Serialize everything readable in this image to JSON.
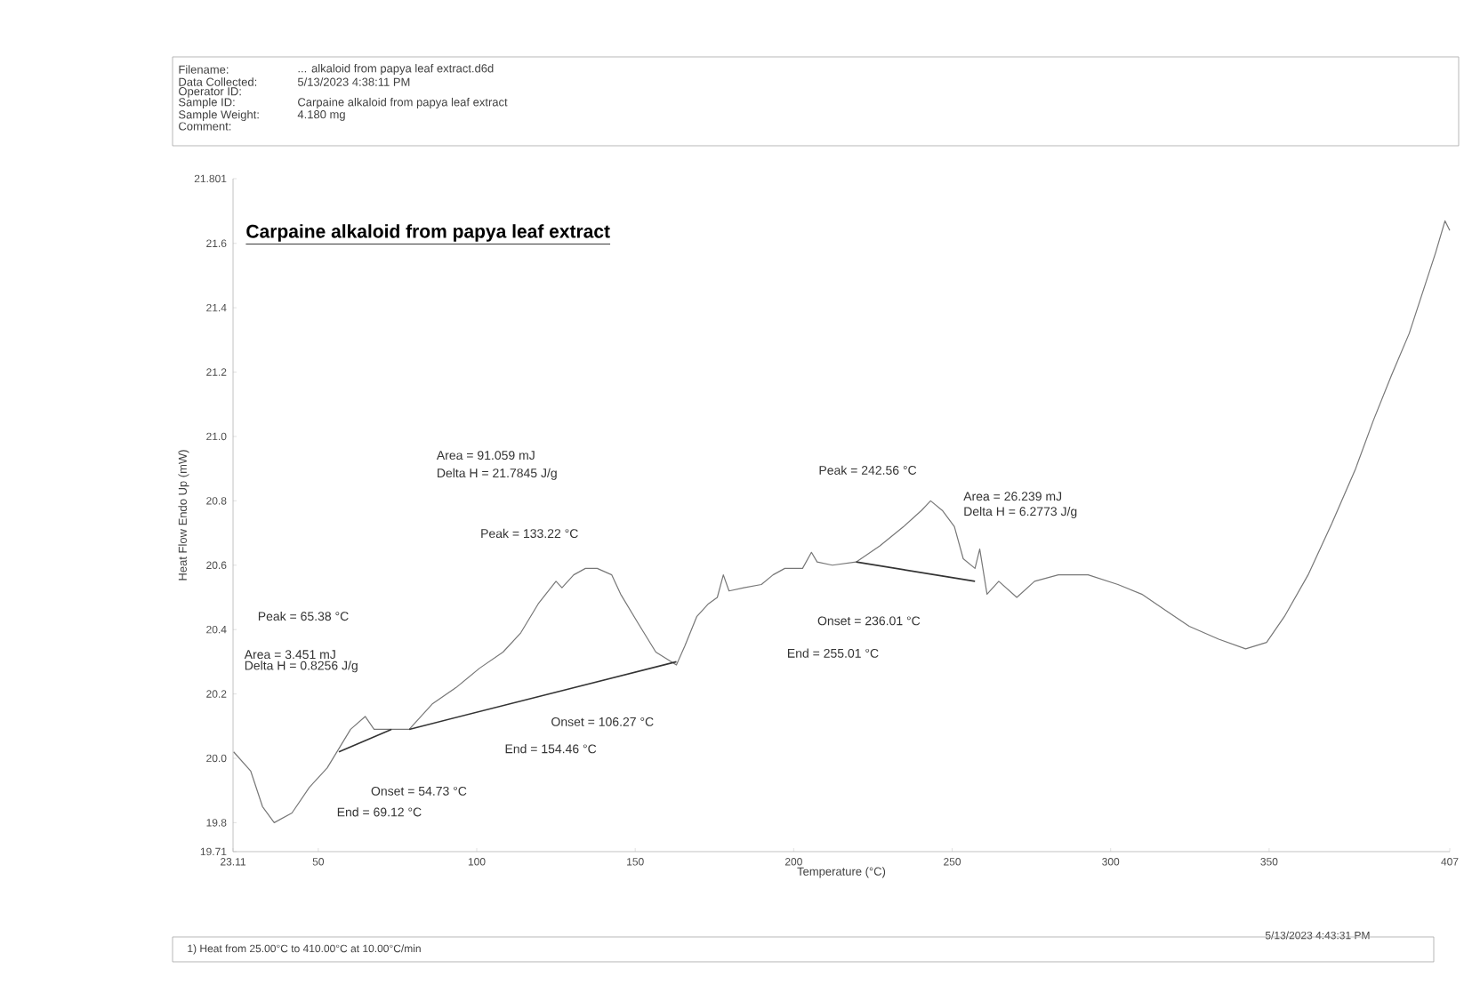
{
  "chart_data": {
    "type": "line",
    "title": "Carpaine alkaloid from papya leaf extract",
    "xlabel": "Temperature (°C)",
    "ylabel": "Heat Flow Endo Up (mW)",
    "xlim": [
      23.11,
      407
    ],
    "ylim": [
      19.71,
      21.801
    ],
    "xticks": [
      23.11,
      50,
      100,
      150,
      200,
      250,
      300,
      350,
      407
    ],
    "yticks": [
      19.71,
      19.8,
      {
        "value": 20,
        "label": "20.0"
      },
      20.2,
      20.4,
      20.6,
      20.8,
      {
        "value": 21,
        "label": "21.0"
      },
      21.2,
      21.4,
      21.6,
      21.801
    ],
    "series": [
      {
        "color": "#777777",
        "x": [
          23.3,
          28.7,
          32.4,
          36.1,
          41.7,
          47.2,
          52.8,
          56.5,
          60.2,
          64.8,
          67.6,
          71.3,
          78.7,
          86.1,
          93.5,
          100.9,
          108.3,
          113.9,
          119.4,
          125.0,
          126.9,
          130.6,
          134.3,
          138.0,
          142.6,
          145.4,
          150.9,
          156.5,
          163.0,
          165.7,
          169.4,
          173.1,
          175.9,
          177.8,
          179.6,
          184.3,
          189.8,
          193.5,
          197.2,
          202.8,
          205.6,
          207.4,
          212.2,
          219.7,
          227.2,
          234.7,
          240.3,
          243.2,
          246.9,
          250.7,
          253.5,
          257.2,
          258.7,
          261.0,
          264.7,
          270.4,
          276.0,
          283.5,
          292.9,
          302.3,
          309.8,
          317.3,
          324.8,
          334.1,
          342.6,
          349.2,
          354.8,
          362.3,
          369.8,
          377.3,
          382.9,
          388.6,
          394.2,
          402.5,
          405.5,
          407
        ],
        "values": [
          20.02,
          19.96,
          19.85,
          19.8,
          19.83,
          19.91,
          19.97,
          20.03,
          20.09,
          20.13,
          20.09,
          20.09,
          20.09,
          20.17,
          20.22,
          20.28,
          20.33,
          20.39,
          20.48,
          20.55,
          20.53,
          20.57,
          20.59,
          20.59,
          20.57,
          20.51,
          20.42,
          20.33,
          20.29,
          20.35,
          20.44,
          20.48,
          20.5,
          20.57,
          20.52,
          20.53,
          20.54,
          20.57,
          20.59,
          20.59,
          20.64,
          20.61,
          20.6,
          20.61,
          20.66,
          20.72,
          20.77,
          20.8,
          20.77,
          20.72,
          20.62,
          20.59,
          20.65,
          20.51,
          20.55,
          20.5,
          20.55,
          20.57,
          20.57,
          20.54,
          20.51,
          20.46,
          20.41,
          20.37,
          20.34,
          20.36,
          20.44,
          20.57,
          20.73,
          20.9,
          21.05,
          21.19,
          21.32,
          21.57,
          21.67,
          21.64
        ]
      },
      {
        "color": "#333333",
        "x": [
          56.5,
          73.1
        ],
        "values": [
          20.02,
          20.09
        ]
      },
      {
        "color": "#333333",
        "x": [
          78.7,
          163.0
        ],
        "values": [
          20.09,
          20.3
        ]
      },
      {
        "color": "#333333",
        "x": [
          219.7,
          257.2
        ],
        "values": [
          20.61,
          20.55
        ]
      }
    ],
    "annotations": [
      "Filename:",
      "... alkaloid from papya leaf extract.d6d",
      "Data Collected:",
      "5/13/2023 4:38:11 PM",
      "Operator ID:",
      "Sample ID:",
      "Carpaine alkaloid from papya leaf extract",
      "Sample Weight:",
      "4.180 mg",
      "Comment:",
      "Peak = 65.38 °C",
      "Area = 3.451 mJ",
      "Delta H = 0.8256 J/g",
      "Onset = 54.73 °C",
      "End = 69.12 °C",
      "Area = 91.059 mJ",
      "Delta H = 21.7845 J/g",
      "Peak = 133.22 °C",
      "Onset = 106.27 °C",
      "End = 154.46 °C",
      "Peak = 242.56 °C",
      "Area = 26.239 mJ",
      "Delta H = 6.2773 J/g",
      "Onset = 236.01 °C",
      "End = 255.01 °C",
      "1)  Heat from 25.00°C to 410.00°C at 10.00°C/min",
      "5/13/2023 4:43:31 PM"
    ]
  }
}
